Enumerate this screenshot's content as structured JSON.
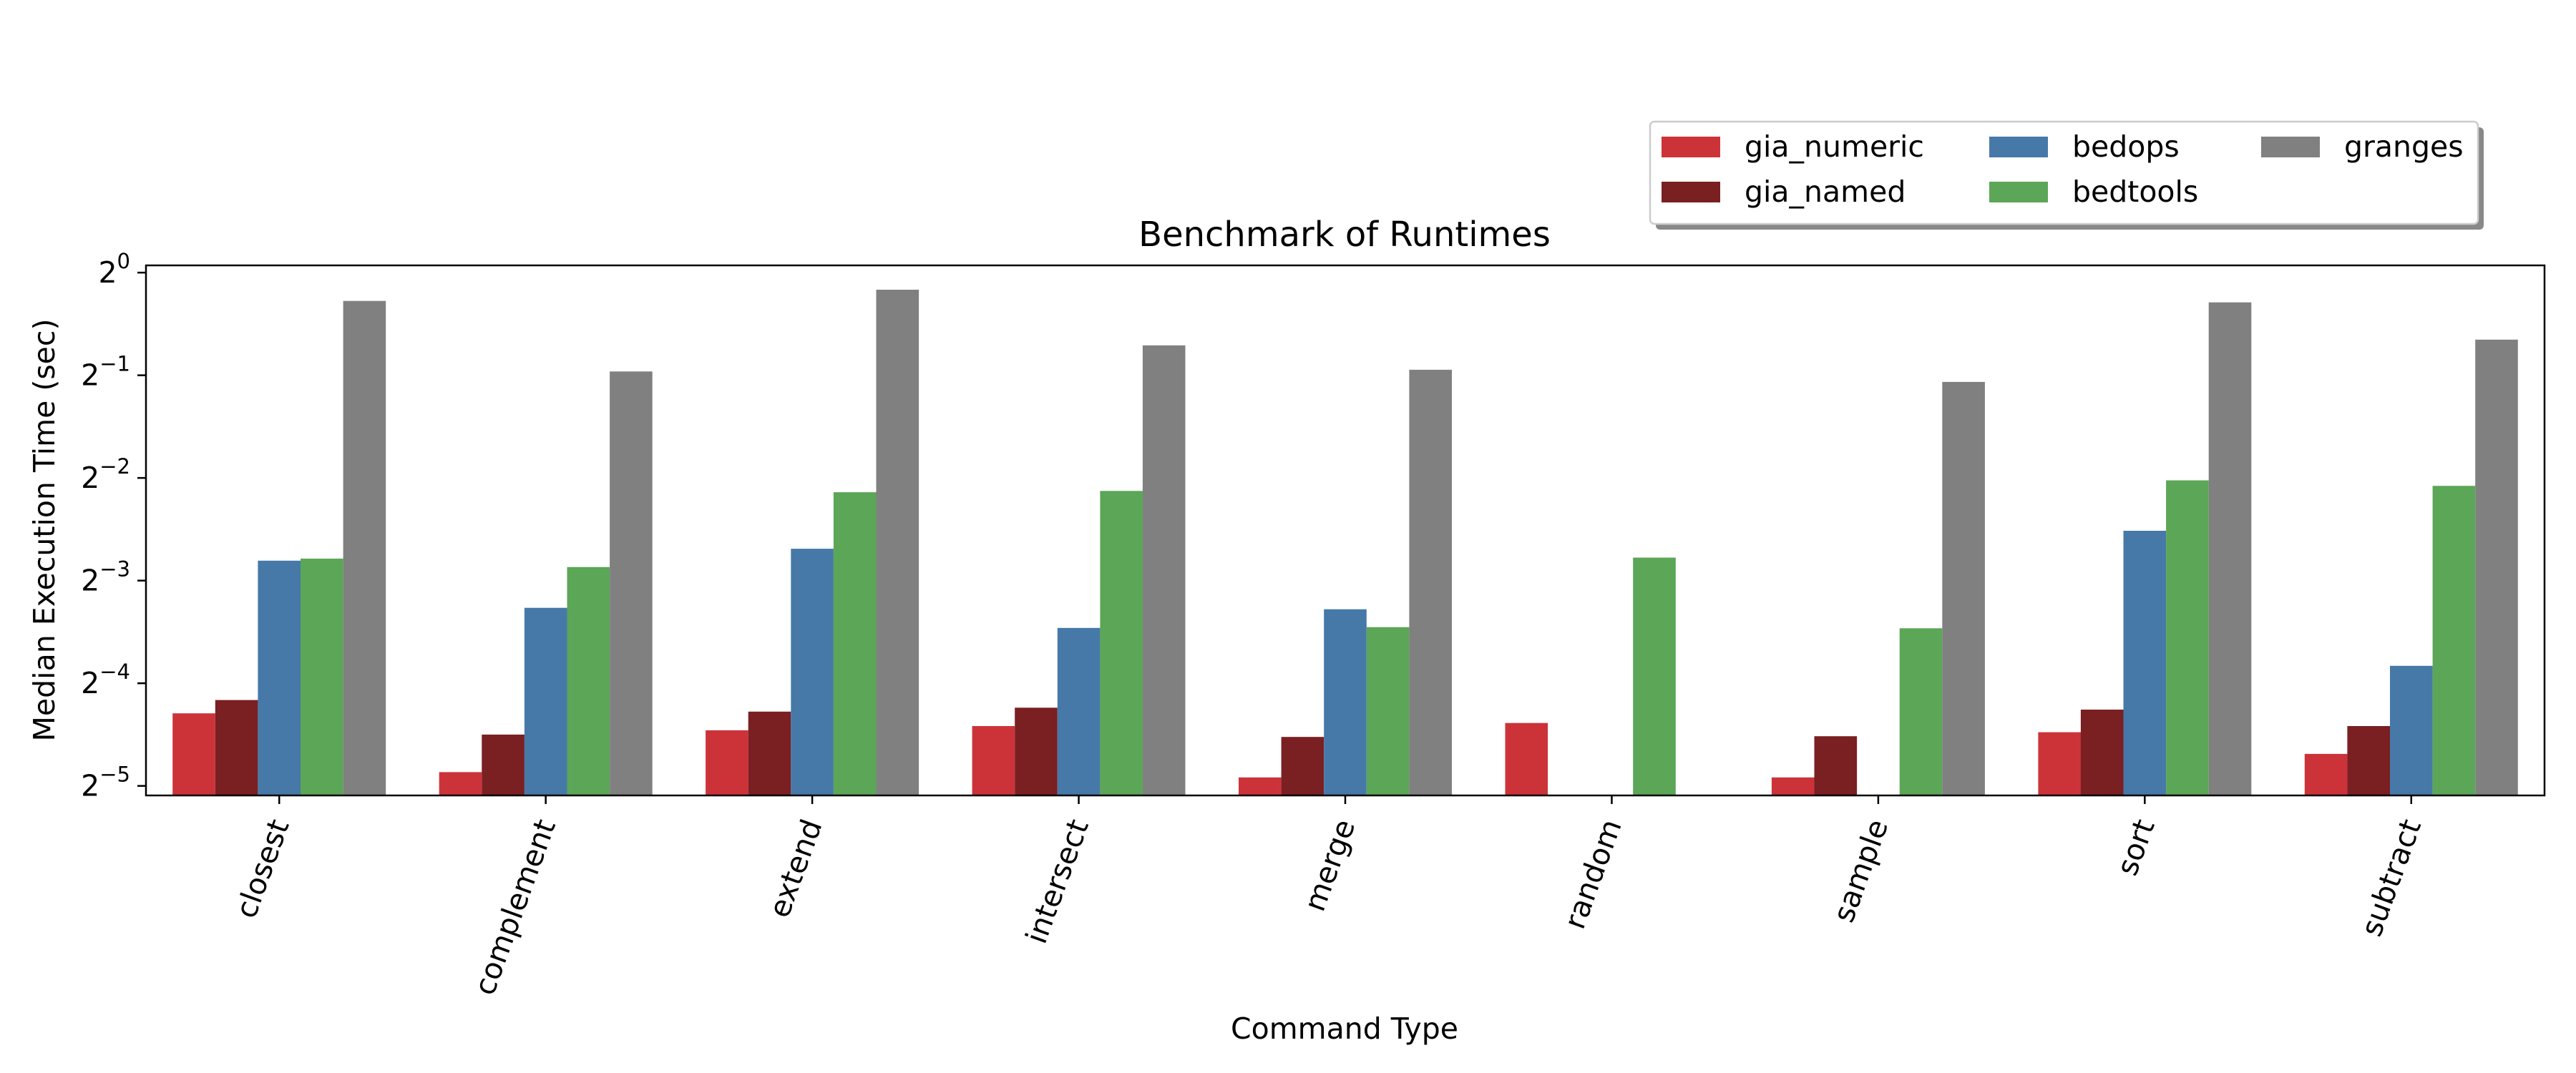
{
  "chart_data": {
    "type": "bar",
    "title": "Benchmark of Runtimes",
    "xlabel": "Command Type",
    "ylabel": "Median Execution Time (sec)",
    "yscale": "log2",
    "ylim": [
      0.0293,
      1.05
    ],
    "yticks": [
      {
        "value": 1,
        "base": "2",
        "exp": "0"
      },
      {
        "value": 0.5,
        "base": "2",
        "exp": "−1"
      },
      {
        "value": 0.25,
        "base": "2",
        "exp": "−2"
      },
      {
        "value": 0.125,
        "base": "2",
        "exp": "−3"
      },
      {
        "value": 0.0625,
        "base": "2",
        "exp": "−4"
      },
      {
        "value": 0.03125,
        "base": "2",
        "exp": "−5"
      }
    ],
    "categories": [
      "closest",
      "complement",
      "extend",
      "intersect",
      "merge",
      "random",
      "sample",
      "sort",
      "subtract"
    ],
    "legend_position": "top-right",
    "series": [
      {
        "name": "gia_numeric",
        "color": "#cc3339",
        "values": [
          0.051,
          0.0343,
          0.0455,
          0.0468,
          0.0331,
          0.0478,
          0.0331,
          0.0449,
          0.0388
        ]
      },
      {
        "name": "gia_named",
        "color": "#7a1f22",
        "values": [
          0.0558,
          0.0442,
          0.0516,
          0.053,
          0.0435,
          null,
          0.0437,
          0.0523,
          0.0468
        ]
      },
      {
        "name": "bedops",
        "color": "#4679a8",
        "values": [
          0.143,
          0.104,
          0.155,
          0.0908,
          0.103,
          null,
          null,
          0.175,
          0.0703
        ]
      },
      {
        "name": "bedtools",
        "color": "#5ca657",
        "values": [
          0.145,
          0.137,
          0.227,
          0.229,
          0.0913,
          0.146,
          0.0906,
          0.246,
          0.237
        ]
      },
      {
        "name": "granges",
        "color": "#808080",
        "values": [
          0.826,
          0.513,
          0.891,
          0.612,
          0.519,
          null,
          0.478,
          0.818,
          0.636
        ]
      }
    ]
  }
}
